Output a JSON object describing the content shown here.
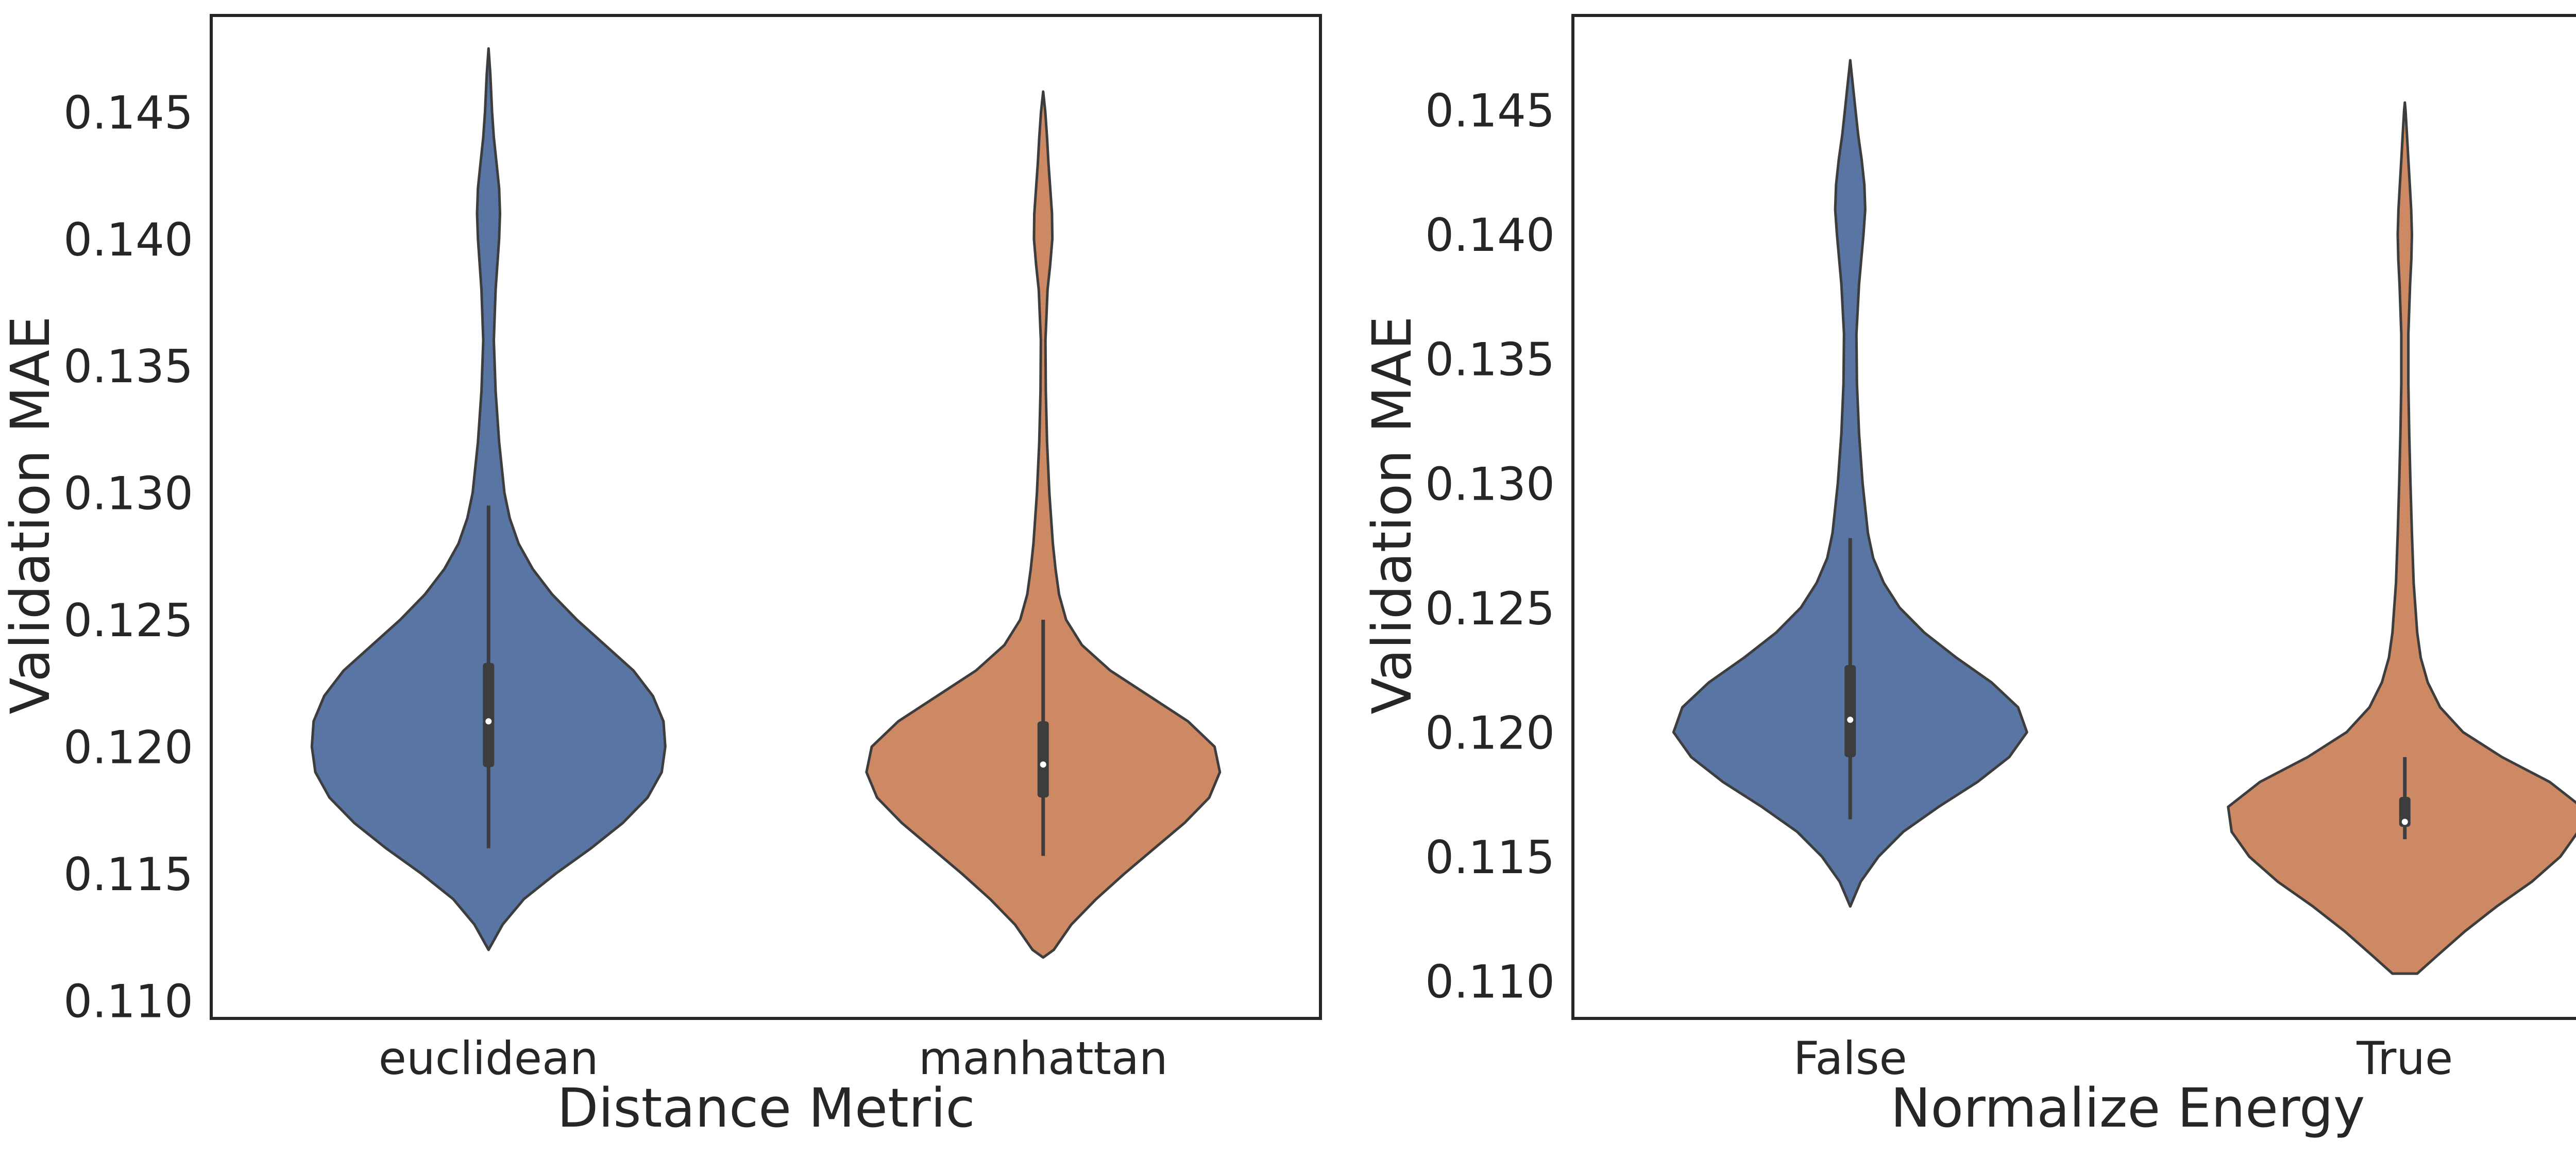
{
  "chart_data": [
    {
      "type": "violin",
      "title": "",
      "xlabel": "Distance Metric",
      "ylabel": "Validation MAE",
      "ylim": [
        0.1093,
        0.1488
      ],
      "yticks": [
        "0.110",
        "0.115",
        "0.120",
        "0.125",
        "0.130",
        "0.135",
        "0.140",
        "0.145"
      ],
      "grid": false,
      "categories": [
        "euclidean",
        "manhattan"
      ],
      "violins": [
        {
          "category": "euclidean",
          "color": "#5875a4",
          "min": 0.112,
          "max": 0.1475,
          "q1": 0.1192,
          "median": 0.121,
          "q3": 0.1233,
          "whisker_low": 0.116,
          "whisker_high": 0.1295,
          "density": [
            [
              0.112,
              0.0
            ],
            [
              0.113,
              0.08
            ],
            [
              0.114,
              0.2
            ],
            [
              0.115,
              0.38
            ],
            [
              0.116,
              0.58
            ],
            [
              0.117,
              0.76
            ],
            [
              0.118,
              0.9
            ],
            [
              0.119,
              0.98
            ],
            [
              0.12,
              1.0
            ],
            [
              0.121,
              0.99
            ],
            [
              0.122,
              0.93
            ],
            [
              0.123,
              0.82
            ],
            [
              0.124,
              0.66
            ],
            [
              0.125,
              0.5
            ],
            [
              0.126,
              0.36
            ],
            [
              0.127,
              0.25
            ],
            [
              0.128,
              0.17
            ],
            [
              0.129,
              0.12
            ],
            [
              0.13,
              0.09
            ],
            [
              0.132,
              0.06
            ],
            [
              0.134,
              0.04
            ],
            [
              0.136,
              0.03
            ],
            [
              0.138,
              0.04
            ],
            [
              0.139,
              0.05
            ],
            [
              0.14,
              0.06
            ],
            [
              0.141,
              0.065
            ],
            [
              0.142,
              0.06
            ],
            [
              0.143,
              0.045
            ],
            [
              0.144,
              0.03
            ],
            [
              0.145,
              0.02
            ],
            [
              0.1465,
              0.01
            ],
            [
              0.1475,
              0.0
            ]
          ]
        },
        {
          "category": "manhattan",
          "color": "#cc8963",
          "min": 0.1117,
          "max": 0.1458,
          "q1": 0.118,
          "median": 0.1193,
          "q3": 0.121,
          "whisker_low": 0.1157,
          "whisker_high": 0.125,
          "density": [
            [
              0.1117,
              0.0
            ],
            [
              0.112,
              0.06
            ],
            [
              0.113,
              0.16
            ],
            [
              0.114,
              0.3
            ],
            [
              0.115,
              0.46
            ],
            [
              0.116,
              0.63
            ],
            [
              0.117,
              0.8
            ],
            [
              0.118,
              0.94
            ],
            [
              0.119,
              1.0
            ],
            [
              0.12,
              0.97
            ],
            [
              0.121,
              0.82
            ],
            [
              0.122,
              0.6
            ],
            [
              0.123,
              0.38
            ],
            [
              0.124,
              0.22
            ],
            [
              0.125,
              0.13
            ],
            [
              0.126,
              0.09
            ],
            [
              0.127,
              0.07
            ],
            [
              0.128,
              0.055
            ],
            [
              0.13,
              0.035
            ],
            [
              0.132,
              0.022
            ],
            [
              0.134,
              0.015
            ],
            [
              0.136,
              0.013
            ],
            [
              0.138,
              0.025
            ],
            [
              0.139,
              0.04
            ],
            [
              0.14,
              0.052
            ],
            [
              0.141,
              0.05
            ],
            [
              0.142,
              0.04
            ],
            [
              0.143,
              0.03
            ],
            [
              0.144,
              0.022
            ],
            [
              0.145,
              0.012
            ],
            [
              0.1458,
              0.0
            ]
          ]
        }
      ]
    },
    {
      "type": "violin",
      "title": "",
      "xlabel": "Normalize Energy",
      "ylabel": "Validation MAE",
      "ylim": [
        0.1085,
        0.1488
      ],
      "yticks": [
        "0.110",
        "0.115",
        "0.120",
        "0.125",
        "0.130",
        "0.135",
        "0.140",
        "0.145"
      ],
      "grid": false,
      "categories": [
        "False",
        "True"
      ],
      "violins": [
        {
          "category": "False",
          "color": "#5875a4",
          "min": 0.113,
          "max": 0.147,
          "q1": 0.119,
          "median": 0.1205,
          "q3": 0.1227,
          "whisker_low": 0.1165,
          "whisker_high": 0.1278,
          "density": [
            [
              0.113,
              0.0
            ],
            [
              0.114,
              0.06
            ],
            [
              0.115,
              0.16
            ],
            [
              0.116,
              0.3
            ],
            [
              0.117,
              0.5
            ],
            [
              0.118,
              0.72
            ],
            [
              0.119,
              0.9
            ],
            [
              0.12,
              1.0
            ],
            [
              0.121,
              0.95
            ],
            [
              0.122,
              0.8
            ],
            [
              0.123,
              0.6
            ],
            [
              0.124,
              0.42
            ],
            [
              0.125,
              0.28
            ],
            [
              0.126,
              0.19
            ],
            [
              0.127,
              0.13
            ],
            [
              0.128,
              0.1
            ],
            [
              0.13,
              0.07
            ],
            [
              0.132,
              0.05
            ],
            [
              0.134,
              0.038
            ],
            [
              0.136,
              0.035
            ],
            [
              0.138,
              0.05
            ],
            [
              0.14,
              0.075
            ],
            [
              0.141,
              0.085
            ],
            [
              0.142,
              0.08
            ],
            [
              0.143,
              0.065
            ],
            [
              0.144,
              0.045
            ],
            [
              0.145,
              0.03
            ],
            [
              0.146,
              0.015
            ],
            [
              0.147,
              0.0
            ]
          ]
        },
        {
          "category": "True",
          "color": "#cc8963",
          "min": 0.1103,
          "max": 0.1453,
          "q1": 0.1162,
          "median": 0.1164,
          "q3": 0.1174,
          "whisker_low": 0.1157,
          "whisker_high": 0.119,
          "density": [
            [
              0.1103,
              0.07
            ],
            [
              0.111,
              0.18
            ],
            [
              0.112,
              0.34
            ],
            [
              0.113,
              0.52
            ],
            [
              0.114,
              0.72
            ],
            [
              0.115,
              0.88
            ],
            [
              0.116,
              0.98
            ],
            [
              0.117,
              1.0
            ],
            [
              0.118,
              0.82
            ],
            [
              0.119,
              0.55
            ],
            [
              0.12,
              0.33
            ],
            [
              0.121,
              0.2
            ],
            [
              0.122,
              0.13
            ],
            [
              0.123,
              0.09
            ],
            [
              0.124,
              0.07
            ],
            [
              0.126,
              0.05
            ],
            [
              0.128,
              0.04
            ],
            [
              0.13,
              0.032
            ],
            [
              0.132,
              0.025
            ],
            [
              0.134,
              0.02
            ],
            [
              0.136,
              0.02
            ],
            [
              0.138,
              0.03
            ],
            [
              0.139,
              0.037
            ],
            [
              0.14,
              0.04
            ],
            [
              0.141,
              0.036
            ],
            [
              0.142,
              0.028
            ],
            [
              0.143,
              0.02
            ],
            [
              0.144,
              0.012
            ],
            [
              0.145,
              0.004
            ],
            [
              0.1453,
              0.0
            ]
          ]
        }
      ]
    }
  ]
}
